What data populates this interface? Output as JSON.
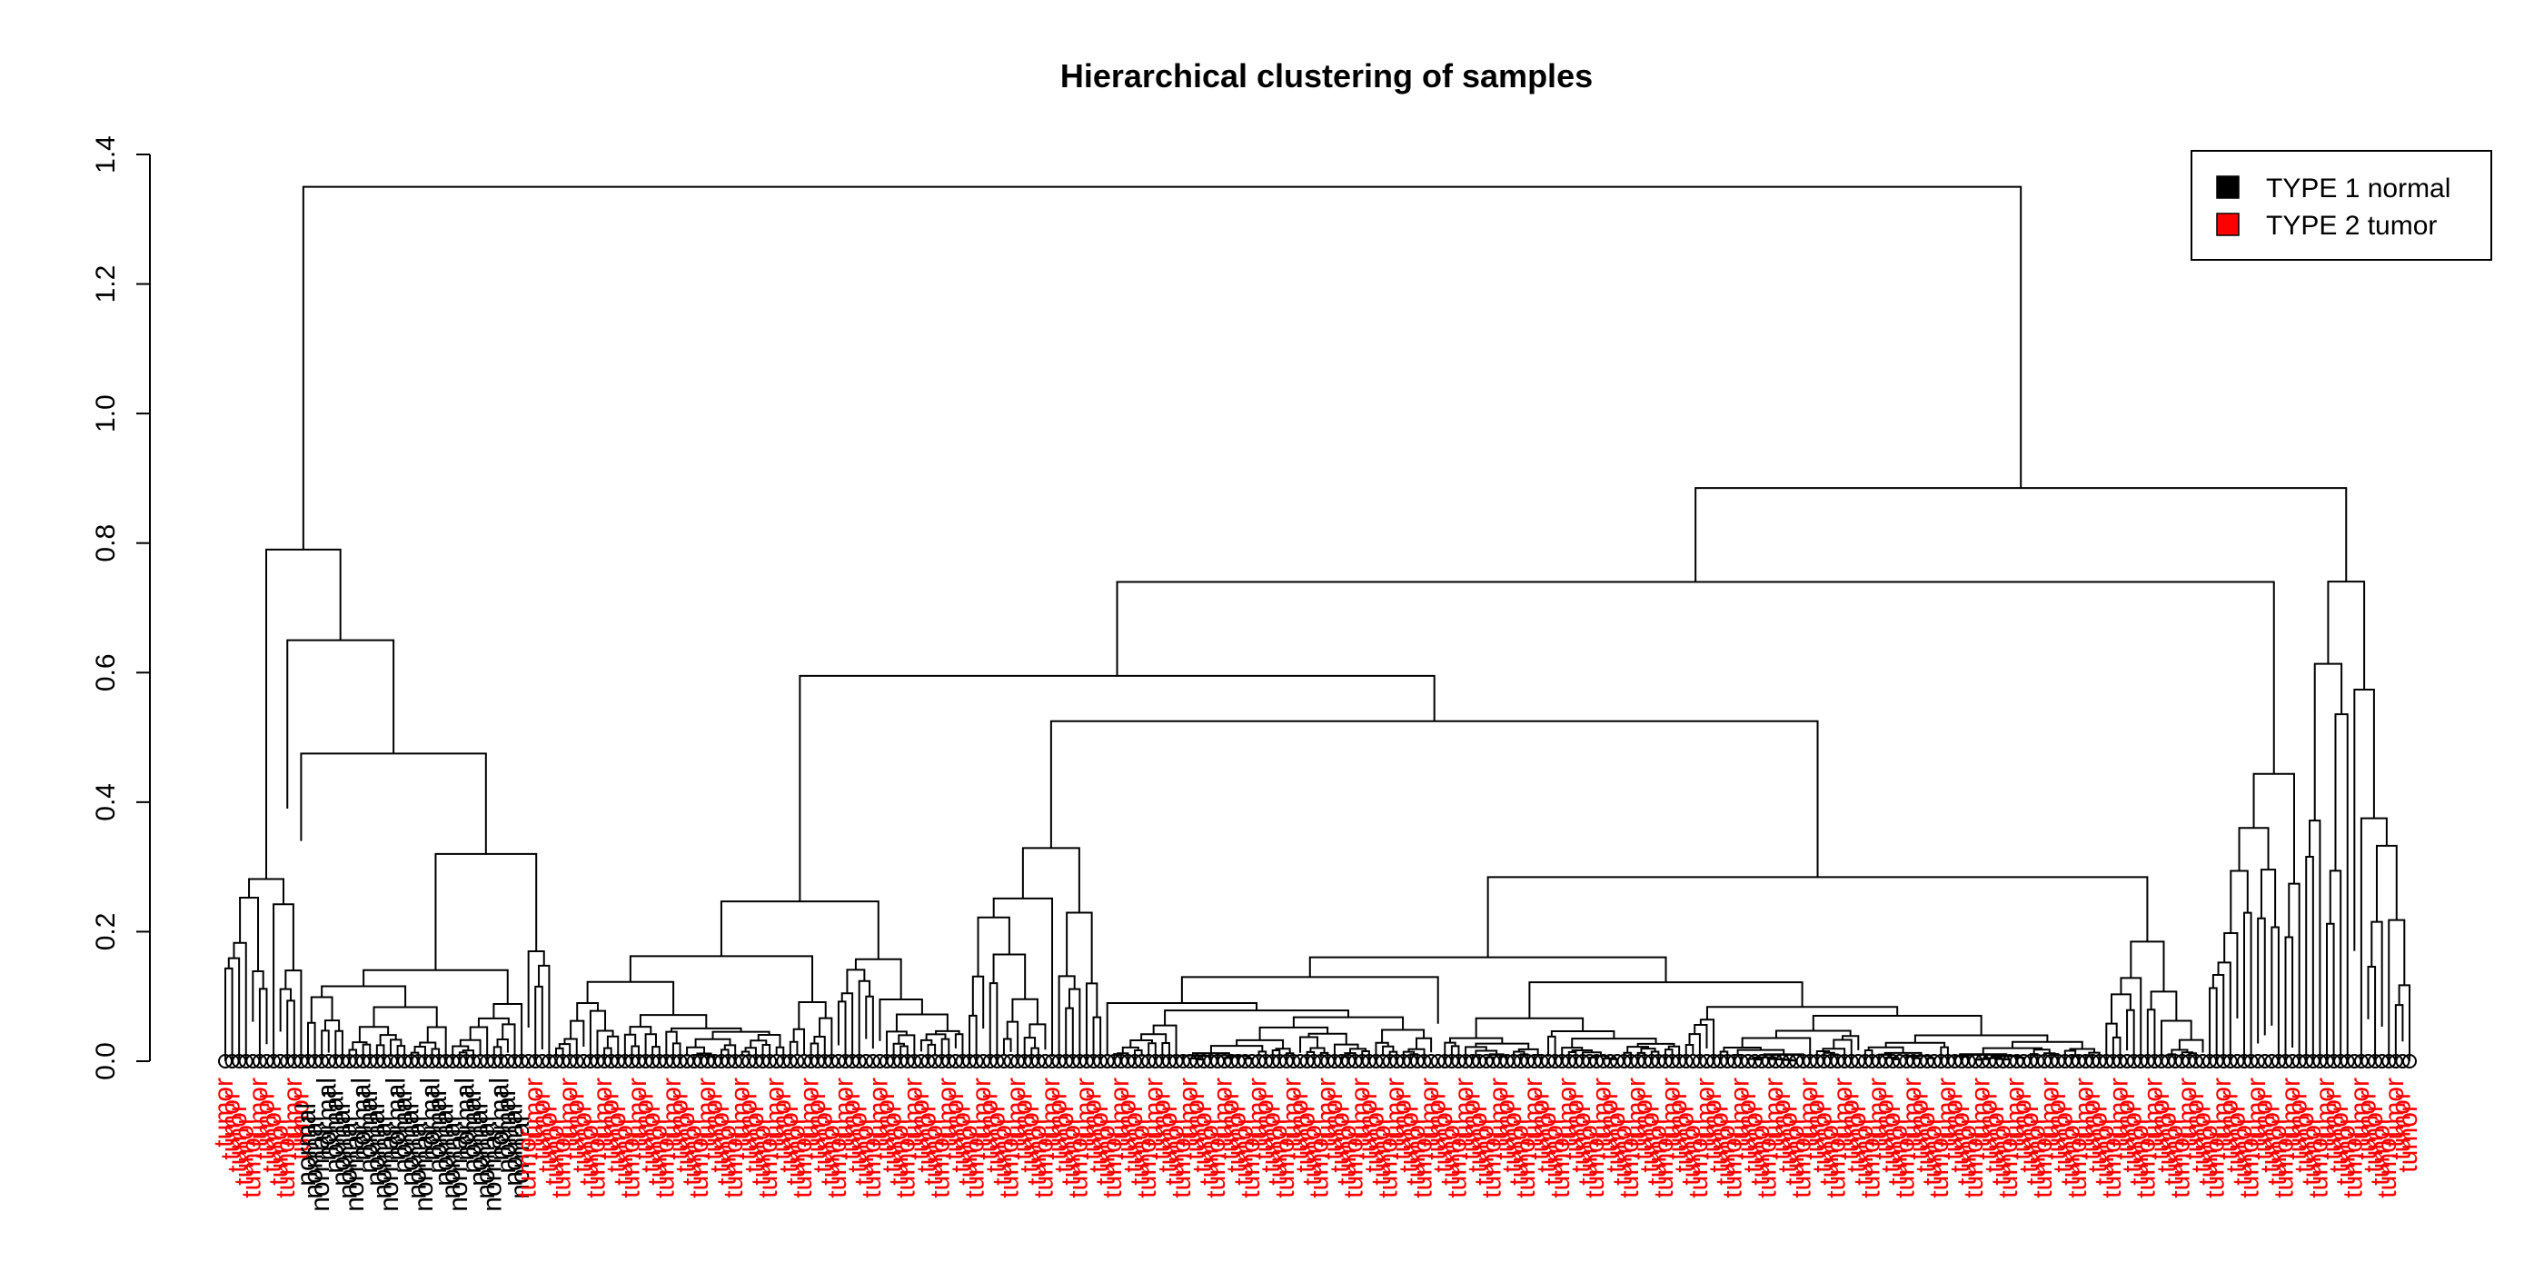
{
  "chart_data": {
    "type": "dendrogram",
    "title": "Hierarchical clustering of samples",
    "xlabel": "",
    "ylabel": "",
    "ylim": [
      0,
      1.4
    ],
    "y_ticks": [
      "0.0",
      "0.2",
      "0.4",
      "0.6",
      "0.8",
      "1.0",
      "1.2",
      "1.4"
    ],
    "legend": {
      "placement": "top-right",
      "entries": [
        {
          "label": "TYPE 1 normal",
          "color": "#000000"
        },
        {
          "label": "TYPE 2 tumor",
          "color": "#ff0000"
        }
      ]
    },
    "leaf_label_text": {
      "normal": "normal",
      "tumor": "tumor"
    },
    "leaf_colors": {
      "normal": "#000000",
      "tumor": "#ff0000"
    },
    "leaf_groups": [
      {
        "class": "tumor",
        "count": 12
      },
      {
        "class": "normal",
        "count": 32
      },
      {
        "class": "tumor",
        "count": 4
      },
      {
        "class": "tumor",
        "count": 60
      },
      {
        "class": "tumor",
        "count": 20
      },
      {
        "class": "tumor",
        "count": 160
      },
      {
        "class": "tumor",
        "count": 14
      },
      {
        "class": "tumor",
        "count": 16
      }
    ],
    "merge_heights": {
      "root": 1.35,
      "left_cluster": 0.79,
      "left_sub_a": 0.42,
      "left_sub_b": 0.65,
      "left_sub_b1": 0.39,
      "left_sub_b2": 0.475,
      "left_sub_b2a": 0.2,
      "left_sub_b2b": 0.32,
      "right_cluster": 0.885,
      "right_main": 0.74,
      "right_outlier_group": 0.85,
      "right_outlier_sub": 0.785,
      "right_outlier_sub2": 0.695,
      "right_outlier_sub3": 0.73,
      "mid_a": 0.595,
      "mid_a1": 0.415,
      "mid_a2": 0.56,
      "mid_b": 0.525,
      "mid_c": 0.5,
      "mid_d": 0.465,
      "mid_e": 0.455,
      "mid_f": 0.395,
      "mid_g": 0.405
    }
  }
}
